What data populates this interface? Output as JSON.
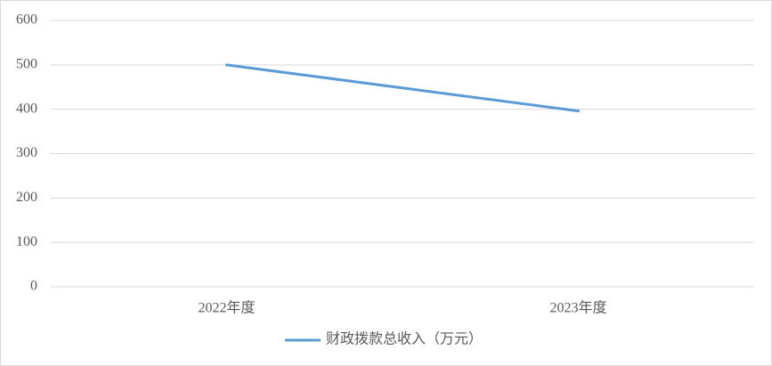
{
  "chart_data": {
    "type": "line",
    "categories": [
      "2022年度",
      "2023年度"
    ],
    "series": [
      {
        "name": "财政拨款总收入（万元）",
        "color": "#5b9bd5",
        "values": [
          500,
          396
        ]
      }
    ],
    "ylim": [
      0,
      600
    ],
    "yticks": [
      0,
      100,
      200,
      300,
      400,
      500,
      600
    ],
    "grid": true,
    "legend": "bottom"
  }
}
